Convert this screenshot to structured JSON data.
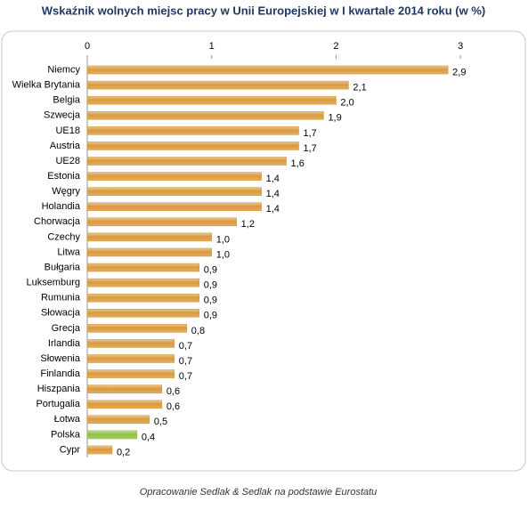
{
  "chart_data": {
    "type": "bar",
    "orientation": "horizontal",
    "title": "Wskaźnik wolnych miejsc pracy w Unii Europejskiej w I kwartale 2014 roku (w %)",
    "source": "Opracowanie Sedlak & Sedlak na podstawie Eurostatu",
    "categories": [
      "Niemcy",
      "Wielka Brytania",
      "Belgia",
      "Szwecja",
      "UE18",
      "Austria",
      "UE28",
      "Estonia",
      "Węgry",
      "Holandia",
      "Chorwacja",
      "Czechy",
      "Litwa",
      "Bułgaria",
      "Luksemburg",
      "Rumunia",
      "Słowacja",
      "Grecja",
      "Irlandia",
      "Słowenia",
      "Finlandia",
      "Hiszpania",
      "Portugalia",
      "Łotwa",
      "Polska",
      "Cypr"
    ],
    "values": [
      2.9,
      2.1,
      2.0,
      1.9,
      1.7,
      1.7,
      1.6,
      1.4,
      1.4,
      1.4,
      1.2,
      1.0,
      1.0,
      0.9,
      0.9,
      0.9,
      0.9,
      0.8,
      0.7,
      0.7,
      0.7,
      0.6,
      0.6,
      0.5,
      0.4,
      0.2
    ],
    "value_labels": [
      "2,9",
      "2,1",
      "2,0",
      "1,9",
      "1,7",
      "1,7",
      "1,6",
      "1,4",
      "1,4",
      "1,4",
      "1,2",
      "1,0",
      "1,0",
      "0,9",
      "0,9",
      "0,9",
      "0,9",
      "0,8",
      "0,7",
      "0,7",
      "0,7",
      "0,6",
      "0,6",
      "0,5",
      "0,4",
      "0,2"
    ],
    "colors": [
      "#d99a3c",
      "#d99a3c",
      "#d99a3c",
      "#d99a3c",
      "#d99a3c",
      "#d99a3c",
      "#d99a3c",
      "#d99a3c",
      "#d99a3c",
      "#d99a3c",
      "#d99a3c",
      "#d99a3c",
      "#d99a3c",
      "#d99a3c",
      "#d99a3c",
      "#d99a3c",
      "#d99a3c",
      "#d99a3c",
      "#d99a3c",
      "#d99a3c",
      "#d99a3c",
      "#d99a3c",
      "#d99a3c",
      "#d99a3c",
      "#8fbf4a",
      "#d99a3c"
    ],
    "xlim": [
      0,
      3.45
    ],
    "xticks": [
      0,
      1,
      2,
      3
    ],
    "grid": false
  }
}
